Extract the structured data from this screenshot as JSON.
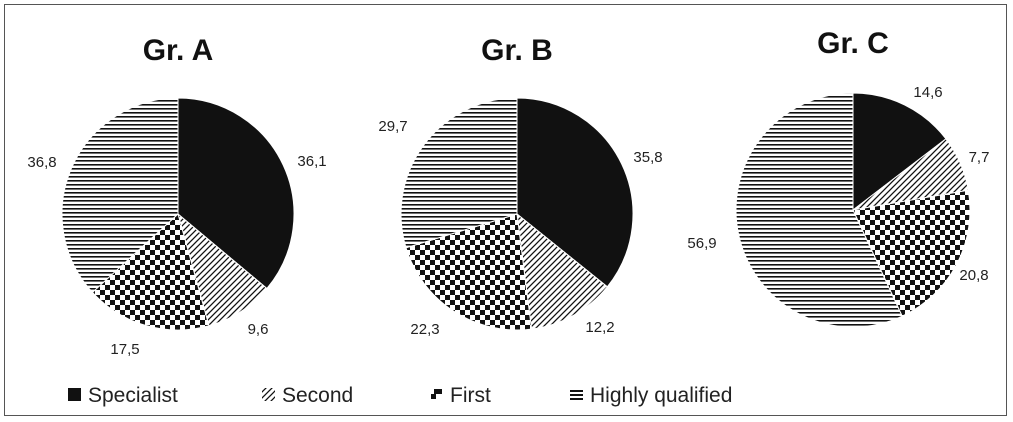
{
  "chart_data": {
    "type": "pie",
    "legend": {
      "placement": "bottom",
      "entries": [
        {
          "name": "Specialist",
          "pattern": "solid"
        },
        {
          "name": "Second",
          "pattern": "diagonal"
        },
        {
          "name": "First",
          "pattern": "checker"
        },
        {
          "name": "Highly qualified",
          "pattern": "horizontal"
        }
      ]
    },
    "colors": {
      "ink": "#111111",
      "background": "#ffffff"
    },
    "charts": [
      {
        "title": "Gr. A",
        "slices": [
          {
            "category": "Specialist",
            "value": 36.1,
            "label": "36,1"
          },
          {
            "category": "Second",
            "value": 9.6,
            "label": "9,6"
          },
          {
            "category": "First",
            "value": 17.5,
            "label": "17,5"
          },
          {
            "category": "Highly qualified",
            "value": 36.8,
            "label": "36,8"
          }
        ]
      },
      {
        "title": "Gr. B",
        "slices": [
          {
            "category": "Specialist",
            "value": 35.8,
            "label": "35,8"
          },
          {
            "category": "Second",
            "value": 12.2,
            "label": "12,2"
          },
          {
            "category": "First",
            "value": 22.3,
            "label": "22,3"
          },
          {
            "category": "Highly qualified",
            "value": 29.7,
            "label": "29,7"
          }
        ]
      },
      {
        "title": "Gr. C",
        "slices": [
          {
            "category": "Specialist",
            "value": 14.6,
            "label": "14,6"
          },
          {
            "category": "Second",
            "value": 7.7,
            "label": "7,7"
          },
          {
            "category": "First",
            "value": 20.8,
            "label": "20,8"
          },
          {
            "category": "Highly qualified",
            "value": 56.9,
            "label": "56,9"
          }
        ]
      }
    ]
  }
}
